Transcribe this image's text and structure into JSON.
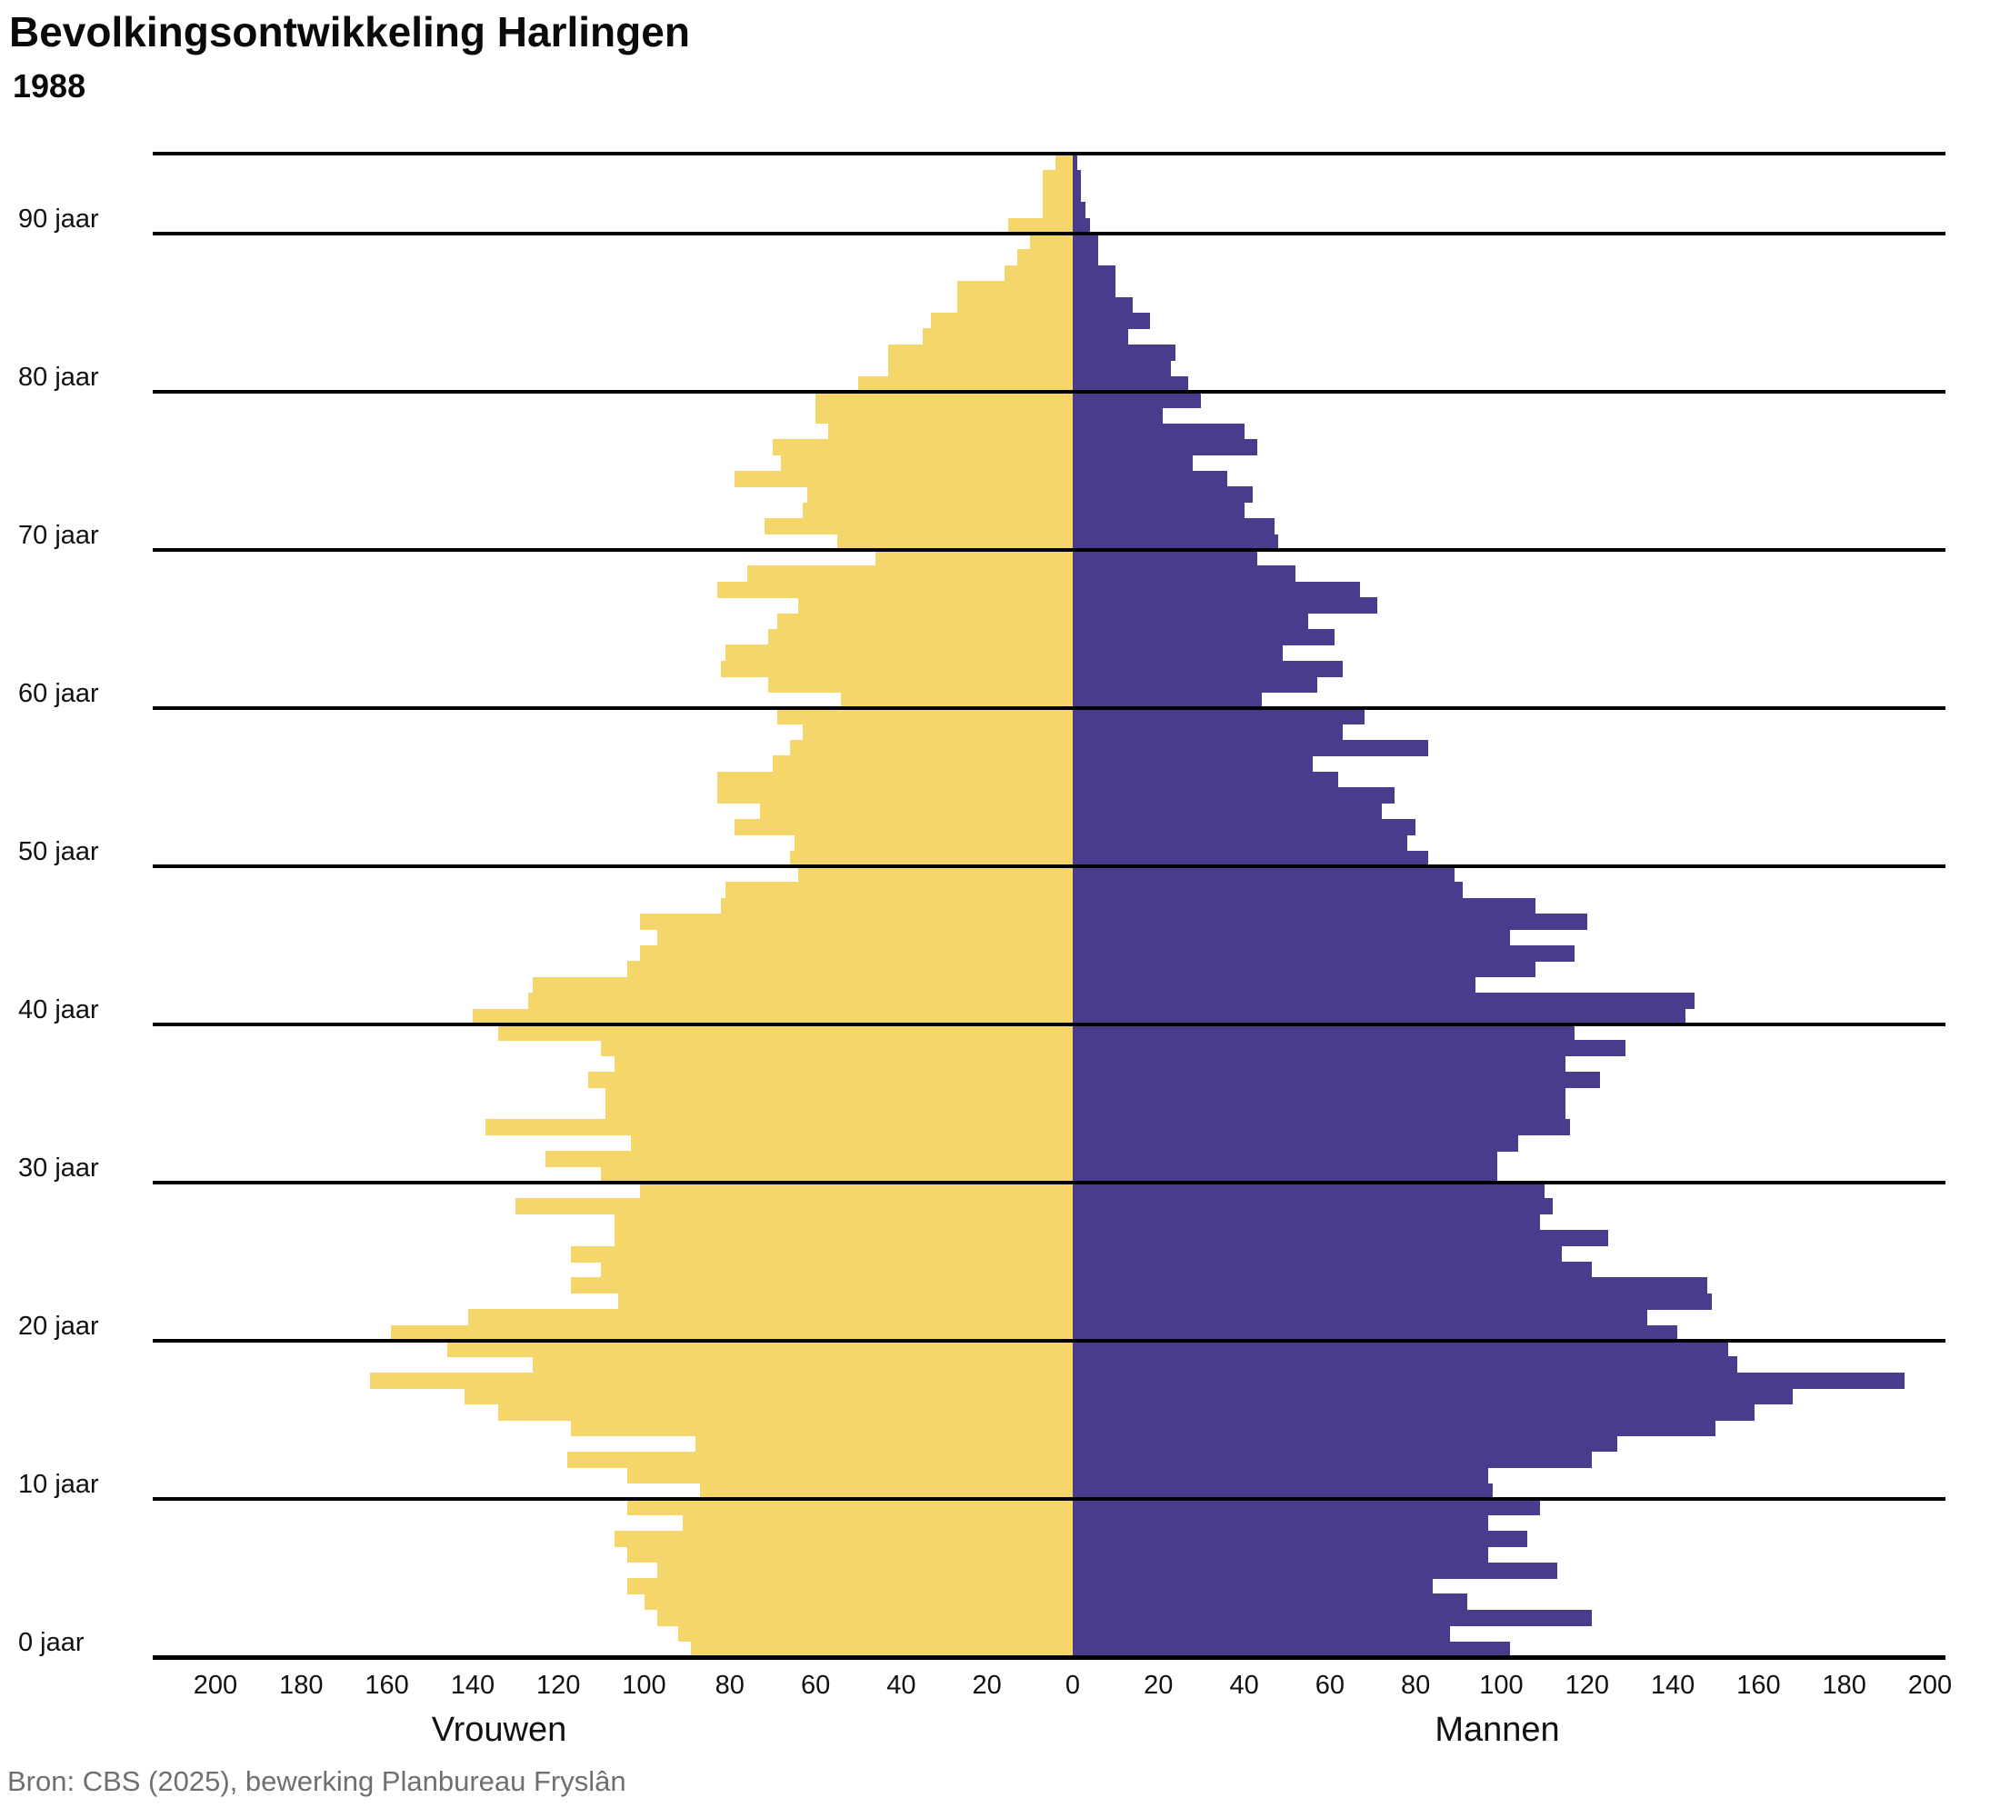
{
  "header": {
    "title": "Bevolkingsontwikkeling Harlingen",
    "subtitle": "1988"
  },
  "source_text": "Bron: CBS (2025), bewerking Planbureau Fryslân",
  "colors": {
    "vrouwen": "#F5D66A",
    "mannen": "#4A3C8C",
    "grid": "#000000",
    "source": "#6F6F6F"
  },
  "axes": {
    "y_unit_suffix": " jaar",
    "y_decade_labels": [
      "0 jaar",
      "10 jaar",
      "20 jaar",
      "30 jaar",
      "40 jaar",
      "50 jaar",
      "60 jaar",
      "70 jaar",
      "80 jaar",
      "90 jaar"
    ],
    "x_ticks_left": [
      200,
      180,
      160,
      140,
      120,
      100,
      80,
      60,
      40,
      20,
      0
    ],
    "x_ticks_right": [
      0,
      20,
      40,
      60,
      80,
      100,
      120,
      140,
      160,
      180,
      200
    ],
    "x_left_label": "Vrouwen",
    "x_right_label": "Mannen"
  },
  "chart_data": {
    "type": "bar",
    "variant": "population-pyramid",
    "title": "Bevolkingsontwikkeling Harlingen",
    "subtitle_year": "1988",
    "age_min": 0,
    "age_max": 94,
    "x_axis": {
      "min": 0,
      "max": 200,
      "tick_step": 20,
      "mirrored": true
    },
    "grid": "horizontal-decade-lines",
    "legend_position": "below-axis",
    "series": [
      {
        "name": "Vrouwen",
        "side": "left",
        "color": "#F5D66A",
        "values_by_age_0_to_94": [
          89,
          92,
          97,
          100,
          104,
          97,
          104,
          107,
          91,
          104,
          87,
          104,
          118,
          88,
          117,
          134,
          142,
          164,
          126,
          146,
          159,
          141,
          106,
          117,
          110,
          117,
          107,
          107,
          130,
          101,
          110,
          123,
          103,
          137,
          109,
          109,
          113,
          107,
          110,
          134,
          140,
          127,
          126,
          104,
          101,
          97,
          101,
          82,
          81,
          64,
          66,
          65,
          79,
          73,
          83,
          83,
          70,
          66,
          63,
          69,
          54,
          71,
          82,
          81,
          71,
          69,
          64,
          83,
          76,
          46,
          55,
          72,
          63,
          62,
          79,
          68,
          70,
          57,
          60,
          60,
          50,
          43,
          43,
          35,
          33,
          27,
          27,
          16,
          13,
          10,
          15,
          7,
          7,
          7,
          4
        ]
      },
      {
        "name": "Mannen",
        "side": "right",
        "color": "#4A3C8C",
        "values_by_age_0_to_94": [
          102,
          88,
          121,
          92,
          84,
          113,
          97,
          106,
          97,
          109,
          98,
          97,
          121,
          127,
          150,
          159,
          168,
          194,
          155,
          153,
          141,
          134,
          149,
          148,
          121,
          114,
          125,
          109,
          112,
          110,
          99,
          99,
          104,
          116,
          115,
          115,
          123,
          115,
          129,
          117,
          143,
          145,
          94,
          108,
          117,
          102,
          120,
          108,
          91,
          89,
          83,
          78,
          80,
          72,
          75,
          62,
          56,
          83,
          63,
          68,
          44,
          57,
          63,
          49,
          61,
          55,
          71,
          67,
          52,
          43,
          48,
          47,
          40,
          42,
          36,
          28,
          43,
          40,
          21,
          30,
          27,
          23,
          24,
          13,
          18,
          14,
          10,
          10,
          6,
          6,
          4,
          3,
          2,
          2,
          1
        ]
      }
    ]
  }
}
